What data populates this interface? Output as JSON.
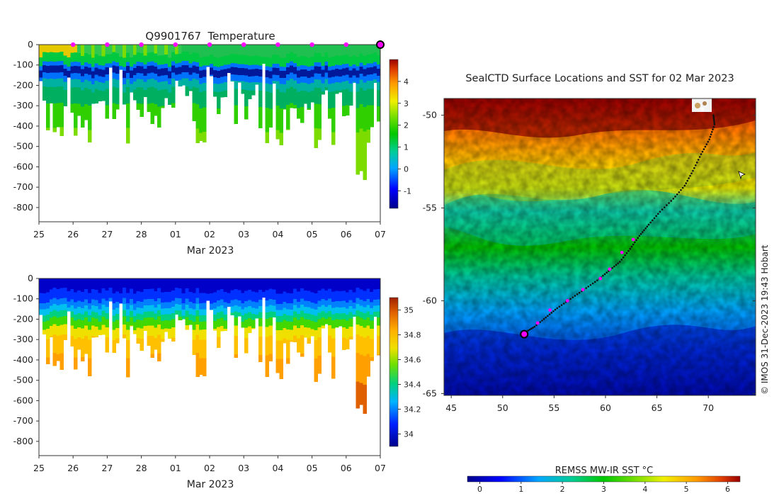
{
  "chart_data": [
    {
      "type": "heatmap",
      "title": "Q9901767  Temperature",
      "xlabel": "Mar 2023",
      "ylabel": "",
      "x_ticks": [
        "25",
        "26",
        "27",
        "28",
        "01",
        "02",
        "03",
        "04",
        "05",
        "06",
        "07"
      ],
      "y_ticks": [
        0,
        -100,
        -200,
        -300,
        -400,
        -500,
        -600,
        -700,
        -800
      ],
      "xlim": [
        0,
        10
      ],
      "ylim": [
        -870,
        0
      ],
      "colorbar": {
        "ticks": [
          -1,
          0,
          1,
          2,
          3,
          4
        ],
        "range": [
          -1.8,
          5
        ]
      },
      "surface_markers_x": [
        1,
        2,
        3,
        4,
        5,
        6,
        7,
        8,
        9
      ],
      "latest_profile_x": 10
    },
    {
      "type": "heatmap",
      "title": "",
      "xlabel": "Mar 2023",
      "ylabel": "",
      "x_ticks": [
        "25",
        "26",
        "27",
        "28",
        "01",
        "02",
        "03",
        "04",
        "05",
        "06",
        "07"
      ],
      "y_ticks": [
        0,
        -100,
        -200,
        -300,
        -400,
        -500,
        -600,
        -700,
        -800
      ],
      "xlim": [
        0,
        10
      ],
      "ylim": [
        -870,
        0
      ],
      "colorbar": {
        "ticks": [
          34,
          34.2,
          34.4,
          34.6,
          34.8,
          35
        ],
        "range": [
          33.9,
          35.1
        ]
      }
    },
    {
      "type": "heatmap",
      "title": "SealCTD Surface Locations and SST for 02 Mar 2023",
      "xlabel": "",
      "ylabel": "",
      "x_ticks": [
        45,
        50,
        55,
        60,
        65,
        70
      ],
      "y_ticks": [
        -50,
        -55,
        -60,
        -65
      ],
      "xlim": [
        44.3,
        74.6
      ],
      "ylim": [
        -65.1,
        -49.1
      ],
      "track": [
        [
          70.5,
          -50.0
        ],
        [
          70.6,
          -50.5
        ],
        [
          70.1,
          -51.3
        ],
        [
          69.3,
          -52.1
        ],
        [
          68.5,
          -53.0
        ],
        [
          67.7,
          -53.8
        ],
        [
          66.6,
          -54.5
        ],
        [
          65.3,
          -55.2
        ],
        [
          64.2,
          -55.9
        ],
        [
          63.3,
          -56.5
        ],
        [
          62.4,
          -57.2
        ],
        [
          61.4,
          -57.9
        ],
        [
          60.3,
          -58.4
        ],
        [
          59.2,
          -58.9
        ],
        [
          57.9,
          -59.4
        ],
        [
          56.6,
          -59.9
        ],
        [
          55.3,
          -60.4
        ],
        [
          54.2,
          -60.9
        ],
        [
          53.1,
          -61.4
        ],
        [
          52.2,
          -61.7
        ]
      ],
      "daily_positions": [
        [
          53.4,
          -61.2
        ],
        [
          54.6,
          -60.5
        ],
        [
          56.3,
          -60.0
        ],
        [
          57.8,
          -59.4
        ],
        [
          59.5,
          -58.8
        ],
        [
          60.4,
          -58.3
        ],
        [
          61.6,
          -57.4
        ],
        [
          62.7,
          -56.7
        ]
      ],
      "latest_position": [
        52.1,
        -61.8
      ],
      "colorbar": {
        "label": "REMSS MW-IR SST °C",
        "ticks": [
          0,
          1,
          2,
          3,
          4,
          5,
          6
        ],
        "range": [
          -0.3,
          6.3
        ]
      }
    }
  ],
  "credit": "© IMOS 31-Dec-2023 19:43 Hobart",
  "colors": {
    "marker": "#ff00ff",
    "text": "#222222"
  }
}
